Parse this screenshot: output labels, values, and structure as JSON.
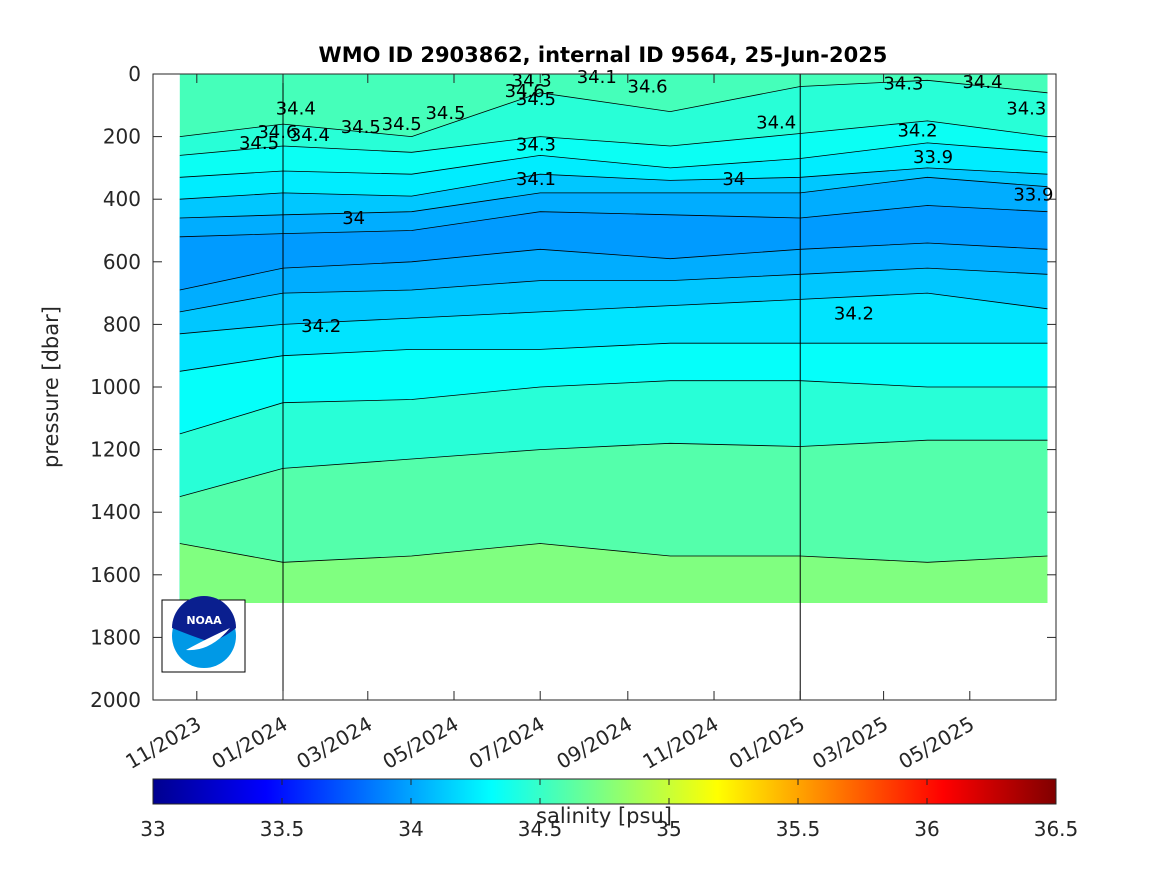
{
  "chart_data": {
    "type": "heatmap",
    "title": "WMO ID 2903862, internal ID 9564, 25-Jun-2025",
    "ylabel": "pressure [dbar]",
    "colorbar_label": "salinity [psu]",
    "y_ticks": [
      "0",
      "200",
      "400",
      "600",
      "800",
      "1000",
      "1200",
      "1400",
      "1600",
      "1800",
      "2000"
    ],
    "ylim": [
      2000,
      0
    ],
    "x_ticks": [
      "11/2023",
      "01/2024",
      "03/2024",
      "05/2024",
      "07/2024",
      "09/2024",
      "11/2024",
      "01/2025",
      "03/2025",
      "05/2025"
    ],
    "year_boundaries": [
      "2024-01-01",
      "2025-01-01"
    ],
    "colorbar_ticks": [
      "33",
      "33.5",
      "34",
      "34.5",
      "35",
      "35.5",
      "36",
      "36.5"
    ],
    "colorbar_range": [
      33,
      36.5
    ],
    "colormap": "jet",
    "contour_labels": [
      {
        "text": "34.4",
        "x": "2024-01-10",
        "y": 110
      },
      {
        "text": "34.6",
        "x": "2023-12-28",
        "y": 185
      },
      {
        "text": "34.5",
        "x": "2023-12-15",
        "y": 220
      },
      {
        "text": "34.4",
        "x": "2024-01-20",
        "y": 195
      },
      {
        "text": "34.5",
        "x": "2024-02-25",
        "y": 170
      },
      {
        "text": "34.5",
        "x": "2024-03-25",
        "y": 160
      },
      {
        "text": "34.5",
        "x": "2024-04-25",
        "y": 125
      },
      {
        "text": "34.3",
        "x": "2024-06-25",
        "y": 20
      },
      {
        "text": "34.1",
        "x": "2024-08-10",
        "y": 10
      },
      {
        "text": "34.6",
        "x": "2024-06-20",
        "y": 55
      },
      {
        "text": "34.5",
        "x": "2024-06-28",
        "y": 80
      },
      {
        "text": "34.6",
        "x": "2024-09-15",
        "y": 40
      },
      {
        "text": "34.4",
        "x": "2024-12-15",
        "y": 155
      },
      {
        "text": "34.3",
        "x": "2024-06-28",
        "y": 225
      },
      {
        "text": "34.1",
        "x": "2024-06-28",
        "y": 335
      },
      {
        "text": "34",
        "x": "2024-11-15",
        "y": 335
      },
      {
        "text": "34",
        "x": "2024-02-20",
        "y": 460
      },
      {
        "text": "34.3",
        "x": "2025-03-15",
        "y": 30
      },
      {
        "text": "34.4",
        "x": "2025-05-10",
        "y": 25
      },
      {
        "text": "34.3",
        "x": "2025-06-10",
        "y": 110
      },
      {
        "text": "34.2",
        "x": "2025-03-25",
        "y": 180
      },
      {
        "text": "33.9",
        "x": "2025-04-05",
        "y": 265
      },
      {
        "text": "33.9",
        "x": "2025-06-15",
        "y": 385
      },
      {
        "text": "34.2",
        "x": "2024-01-28",
        "y": 805
      },
      {
        "text": "34.2",
        "x": "2025-02-08",
        "y": 765
      }
    ]
  },
  "logo": {
    "text": "NOAA",
    "colors": {
      "dark": "#0a1f8f",
      "light": "#0099e6"
    }
  }
}
